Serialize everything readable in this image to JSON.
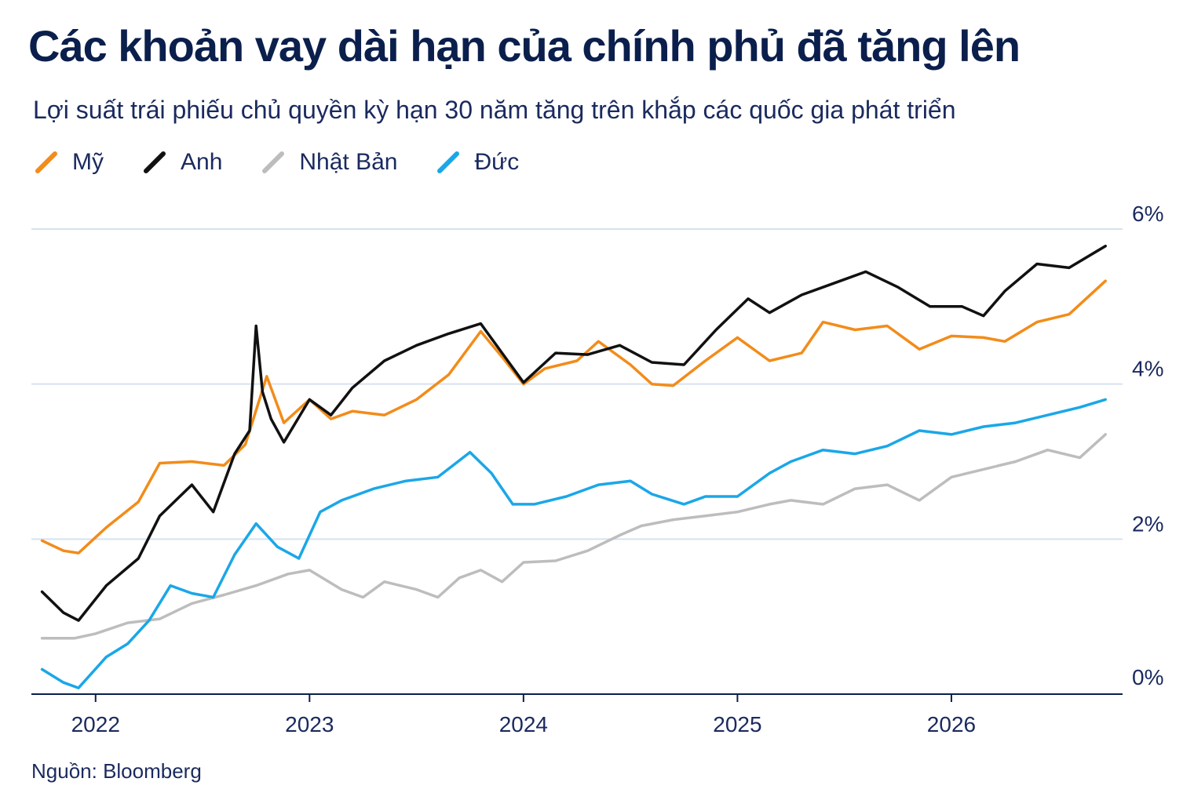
{
  "header": {
    "title": "Các khoản vay dài hạn của chính phủ đã tăng lên",
    "subtitle": "Lợi suất trái phiếu chủ quyền kỳ hạn 30 năm tăng trên khắp các quốc gia phát triển"
  },
  "legend": [
    {
      "label": "Mỹ",
      "color": "#f28c1a"
    },
    {
      "label": "Anh",
      "color": "#111111"
    },
    {
      "label": "Nhật Bản",
      "color": "#bdbdbd"
    },
    {
      "label": "Đức",
      "color": "#1aa7e8"
    }
  ],
  "footer": {
    "source": "Nguồn: Bloomberg"
  },
  "chart_data": {
    "type": "line",
    "title": "Các khoản vay dài hạn của chính phủ đã tăng lên",
    "subtitle": "Lợi suất trái phiếu chủ quyền kỳ hạn 30 năm tăng trên khắp các quốc gia phát triển",
    "xlabel": "",
    "ylabel": "",
    "x_ticks": [
      "2022",
      "2023",
      "2024",
      "2025",
      "2026"
    ],
    "x_tick_values": [
      2022.0,
      2023.0,
      2024.0,
      2025.0,
      2026.0
    ],
    "y_ticks": [
      "0%",
      "2%",
      "4%",
      "6%"
    ],
    "y_tick_values": [
      0,
      2,
      4,
      6
    ],
    "xlim": [
      2021.7,
      2026.8
    ],
    "ylim": [
      0,
      6
    ],
    "grid": "horizontal",
    "y_axis_position": "right",
    "legend_position": "top-left",
    "source": "Nguồn: Bloomberg",
    "series": [
      {
        "name": "Mỹ",
        "color": "#f28c1a",
        "x": [
          2021.75,
          2021.85,
          2021.92,
          2022.05,
          2022.2,
          2022.3,
          2022.45,
          2022.6,
          2022.7,
          2022.8,
          2022.88,
          2023.0,
          2023.1,
          2023.2,
          2023.35,
          2023.5,
          2023.65,
          2023.8,
          2023.9,
          2024.0,
          2024.1,
          2024.25,
          2024.35,
          2024.5,
          2024.6,
          2024.7,
          2024.85,
          2025.0,
          2025.15,
          2025.3,
          2025.4,
          2025.55,
          2025.7,
          2025.85,
          2026.0,
          2026.15,
          2026.25,
          2026.4,
          2026.55,
          2026.72
        ],
        "values": [
          1.98,
          1.85,
          1.82,
          2.15,
          2.48,
          2.98,
          3.0,
          2.95,
          3.22,
          4.1,
          3.5,
          3.8,
          3.55,
          3.65,
          3.6,
          3.8,
          4.12,
          4.68,
          4.35,
          4.0,
          4.2,
          4.3,
          4.55,
          4.25,
          4.0,
          3.98,
          4.3,
          4.6,
          4.3,
          4.4,
          4.8,
          4.7,
          4.75,
          4.45,
          4.62,
          4.6,
          4.55,
          4.8,
          4.9,
          5.33
        ]
      },
      {
        "name": "Anh",
        "color": "#111111",
        "x": [
          2021.75,
          2021.85,
          2021.92,
          2022.05,
          2022.2,
          2022.3,
          2022.45,
          2022.55,
          2022.65,
          2022.72,
          2022.75,
          2022.78,
          2022.82,
          2022.88,
          2023.0,
          2023.1,
          2023.2,
          2023.35,
          2023.5,
          2023.65,
          2023.8,
          2023.9,
          2024.0,
          2024.15,
          2024.3,
          2024.45,
          2024.6,
          2024.75,
          2024.9,
          2025.05,
          2025.15,
          2025.3,
          2025.45,
          2025.6,
          2025.75,
          2025.9,
          2026.05,
          2026.15,
          2026.25,
          2026.4,
          2026.55,
          2026.72
        ],
        "values": [
          1.32,
          1.05,
          0.95,
          1.4,
          1.75,
          2.3,
          2.7,
          2.35,
          3.1,
          3.4,
          4.75,
          3.9,
          3.55,
          3.25,
          3.8,
          3.6,
          3.95,
          4.3,
          4.5,
          4.65,
          4.78,
          4.4,
          4.02,
          4.4,
          4.38,
          4.5,
          4.28,
          4.25,
          4.7,
          5.1,
          4.92,
          5.15,
          5.3,
          5.45,
          5.25,
          5.0,
          5.0,
          4.88,
          5.2,
          5.55,
          5.5,
          5.78
        ]
      },
      {
        "name": "Nhật Bản",
        "color": "#bdbdbd",
        "x": [
          2021.75,
          2021.9,
          2022.0,
          2022.15,
          2022.3,
          2022.45,
          2022.6,
          2022.75,
          2022.9,
          2023.0,
          2023.15,
          2023.25,
          2023.35,
          2023.5,
          2023.6,
          2023.7,
          2023.8,
          2023.9,
          2024.0,
          2024.15,
          2024.3,
          2024.45,
          2024.55,
          2024.7,
          2024.85,
          2025.0,
          2025.15,
          2025.25,
          2025.4,
          2025.55,
          2025.7,
          2025.85,
          2026.0,
          2026.15,
          2026.3,
          2026.45,
          2026.6,
          2026.72
        ],
        "values": [
          0.72,
          0.72,
          0.78,
          0.92,
          0.97,
          1.17,
          1.28,
          1.4,
          1.55,
          1.6,
          1.35,
          1.25,
          1.45,
          1.35,
          1.25,
          1.5,
          1.6,
          1.45,
          1.7,
          1.72,
          1.85,
          2.05,
          2.17,
          2.25,
          2.3,
          2.35,
          2.45,
          2.5,
          2.45,
          2.65,
          2.7,
          2.5,
          2.8,
          2.9,
          3.0,
          3.15,
          3.05,
          3.35
        ]
      },
      {
        "name": "Đức",
        "color": "#1aa7e8",
        "x": [
          2021.75,
          2021.85,
          2021.92,
          2022.05,
          2022.15,
          2022.25,
          2022.35,
          2022.45,
          2022.55,
          2022.65,
          2022.75,
          2022.85,
          2022.95,
          2023.05,
          2023.15,
          2023.3,
          2023.45,
          2023.6,
          2023.75,
          2023.85,
          2023.95,
          2024.05,
          2024.2,
          2024.35,
          2024.5,
          2024.6,
          2024.75,
          2024.85,
          2025.0,
          2025.15,
          2025.25,
          2025.4,
          2025.55,
          2025.7,
          2025.85,
          2026.0,
          2026.15,
          2026.3,
          2026.45,
          2026.6,
          2026.72
        ],
        "values": [
          0.32,
          0.15,
          0.08,
          0.48,
          0.65,
          0.95,
          1.4,
          1.3,
          1.25,
          1.8,
          2.2,
          1.9,
          1.75,
          2.35,
          2.5,
          2.65,
          2.75,
          2.8,
          3.12,
          2.85,
          2.45,
          2.45,
          2.55,
          2.7,
          2.75,
          2.58,
          2.45,
          2.55,
          2.55,
          2.85,
          3.0,
          3.15,
          3.1,
          3.2,
          3.4,
          3.35,
          3.45,
          3.5,
          3.6,
          3.7,
          3.8
        ]
      }
    ]
  }
}
